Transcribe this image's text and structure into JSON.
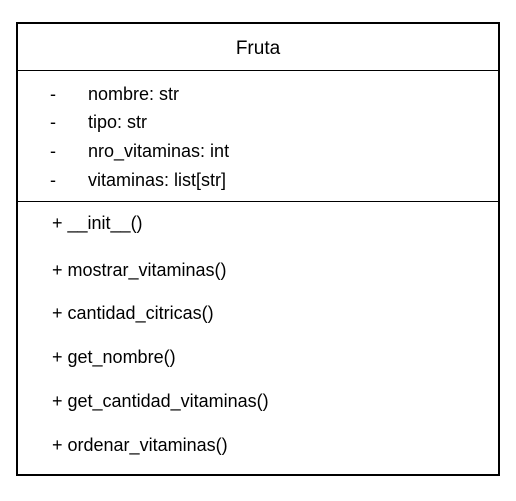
{
  "class_box": {
    "name": "Fruta",
    "attributes": [
      {
        "visibility": "-",
        "text": "nombre: str"
      },
      {
        "visibility": "-",
        "text": "tipo: str"
      },
      {
        "visibility": "-",
        "text": "nro_vitaminas: int"
      },
      {
        "visibility": "-",
        "text": "vitaminas: list[str]"
      }
    ],
    "operations": [
      "+ __init__()",
      "+ mostrar_vitaminas()",
      "+ cantidad_citricas()",
      "+ get_nombre()",
      "+ get_cantidad_vitaminas()",
      "+ ordenar_vitaminas()"
    ]
  }
}
